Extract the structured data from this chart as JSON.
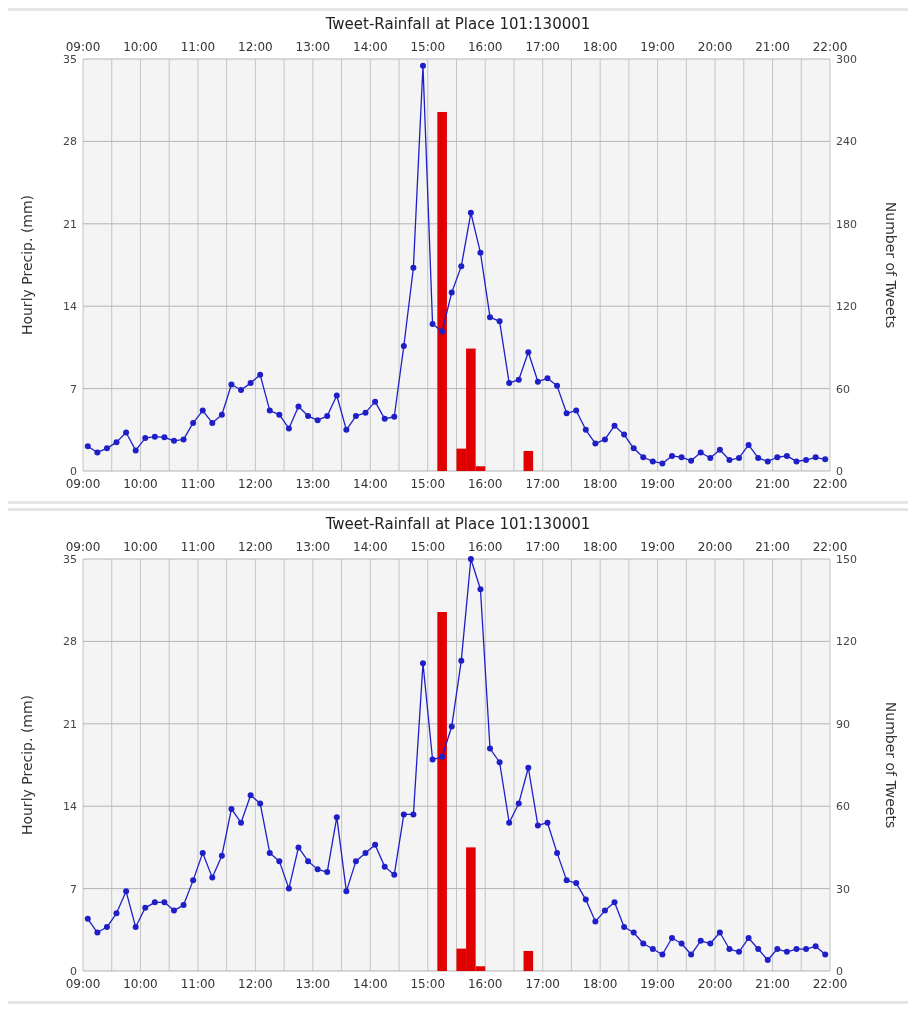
{
  "chart_data": [
    {
      "type": "bar",
      "title": "Tweet-Rainfall at Place 101:130001",
      "ylabel": "Hourly Precip. (mm)",
      "y2label": "Number of Tweets",
      "grid": true,
      "marker": "circle",
      "x": [
        9.0833,
        9.25,
        9.4167,
        9.5833,
        9.75,
        9.9167,
        10.0833,
        10.25,
        10.4167,
        10.5833,
        10.75,
        10.9167,
        11.0833,
        11.25,
        11.4167,
        11.5833,
        11.75,
        11.9167,
        12.0833,
        12.25,
        12.4167,
        12.5833,
        12.75,
        12.9167,
        13.0833,
        13.25,
        13.4167,
        13.5833,
        13.75,
        13.9167,
        14.0833,
        14.25,
        14.4167,
        14.5833,
        14.75,
        14.9167,
        15.0833,
        15.25,
        15.4167,
        15.5833,
        15.75,
        15.9167,
        16.0833,
        16.25,
        16.4167,
        16.5833,
        16.75,
        16.9167,
        17.0833,
        17.25,
        17.4167,
        17.5833,
        17.75,
        17.9167,
        18.0833,
        18.25,
        18.4167,
        18.5833,
        18.75,
        18.9167,
        19.0833,
        19.25,
        19.4167,
        19.5833,
        19.75,
        19.9167,
        20.0833,
        20.25,
        20.4167,
        20.5833,
        20.75,
        20.9167,
        21.0833,
        21.25,
        21.4167,
        21.5833,
        21.75,
        21.9167
      ],
      "xlim": [
        9,
        22
      ],
      "xticks": [
        {
          "value": 9,
          "label": "09:00"
        },
        {
          "value": 9.5,
          "label": null
        },
        {
          "value": 10,
          "label": "10:00"
        },
        {
          "value": 10.5,
          "label": null
        },
        {
          "value": 11,
          "label": "11:00"
        },
        {
          "value": 11.5,
          "label": null
        },
        {
          "value": 12,
          "label": "12:00"
        },
        {
          "value": 12.5,
          "label": null
        },
        {
          "value": 13,
          "label": "13:00"
        },
        {
          "value": 13.5,
          "label": null
        },
        {
          "value": 14,
          "label": "14:00"
        },
        {
          "value": 14.5,
          "label": null
        },
        {
          "value": 15,
          "label": "15:00"
        },
        {
          "value": 15.5,
          "label": null
        },
        {
          "value": 16,
          "label": "16:00"
        },
        {
          "value": 16.5,
          "label": null
        },
        {
          "value": 17,
          "label": "17:00"
        },
        {
          "value": 17.5,
          "label": null
        },
        {
          "value": 18,
          "label": "18:00"
        },
        {
          "value": 18.5,
          "label": null
        },
        {
          "value": 19,
          "label": "19:00"
        },
        {
          "value": 19.5,
          "label": null
        },
        {
          "value": 20,
          "label": "20:00"
        },
        {
          "value": 20.5,
          "label": null
        },
        {
          "value": 21,
          "label": "21:00"
        },
        {
          "value": 21.5,
          "label": null
        },
        {
          "value": 22,
          "label": "22:00"
        }
      ],
      "x2lim": [
        9,
        22
      ],
      "x2ticks": [
        {
          "value": 9,
          "label": "09:00"
        },
        {
          "value": 10,
          "label": "10:00"
        },
        {
          "value": 11,
          "label": "11:00"
        },
        {
          "value": 12,
          "label": "12:00"
        },
        {
          "value": 13,
          "label": "13:00"
        },
        {
          "value": 14,
          "label": "14:00"
        },
        {
          "value": 15,
          "label": "15:00"
        },
        {
          "value": 16,
          "label": "16:00"
        },
        {
          "value": 17,
          "label": "17:00"
        },
        {
          "value": 18,
          "label": "18:00"
        },
        {
          "value": 19,
          "label": "19:00"
        },
        {
          "value": 20,
          "label": "20:00"
        },
        {
          "value": 21,
          "label": "21:00"
        },
        {
          "value": 22,
          "label": "22:00"
        }
      ],
      "ylim": [
        0,
        35
      ],
      "yticks": [
        0,
        7,
        14,
        21,
        28,
        35
      ],
      "y2lim": [
        0,
        300
      ],
      "y2ticks": [
        0,
        60,
        120,
        180,
        240,
        300
      ],
      "series": [
        {
          "type": "bar",
          "axis": "y",
          "color": "#e00000",
          "values": [
            0,
            0,
            0,
            0,
            0,
            0,
            0,
            0,
            0,
            0,
            0,
            0,
            0,
            0,
            0,
            0,
            0,
            0,
            0,
            0,
            0,
            0,
            0,
            0,
            0,
            0,
            0,
            0,
            0,
            0,
            0,
            0,
            0,
            0,
            0,
            0,
            0,
            30.5,
            0,
            1.9,
            10.4,
            0.4,
            0,
            0,
            0,
            0,
            1.7,
            0,
            0,
            0,
            0,
            0,
            0,
            0,
            0,
            0,
            0,
            0,
            0,
            0,
            0,
            0,
            0,
            0,
            0,
            0,
            0,
            0,
            0,
            0,
            0,
            0,
            0,
            0,
            0,
            0,
            0,
            0
          ]
        },
        {
          "type": "line",
          "axis": "y2",
          "color": "#1f1fc8",
          "values": [
            18,
            13.5,
            16.5,
            21,
            28,
            15,
            24,
            25,
            24.5,
            22,
            23,
            35,
            44,
            35,
            41,
            63,
            59,
            64,
            70,
            44,
            41,
            31,
            47,
            40,
            37,
            40,
            55,
            30,
            40,
            42.5,
            50.5,
            38,
            39.5,
            91,
            148,
            295,
            107,
            101.5,
            130,
            149,
            188,
            159,
            112,
            109,
            64,
            66.5,
            86.5,
            65,
            67.5,
            62,
            42,
            44,
            30,
            20,
            23,
            33,
            26.5,
            16.5,
            10,
            7,
            5.5,
            11,
            10,
            7.5,
            13.5,
            9.5,
            15.5,
            8,
            9.5,
            19,
            9.5,
            7,
            10,
            11,
            7,
            8,
            10,
            8.5
          ]
        }
      ]
    },
    {
      "type": "bar",
      "title": "Tweet-Rainfall at Place 101:130001",
      "ylabel": "Hourly Precip. (mm)",
      "y2label": "Number of Tweets",
      "grid": true,
      "marker": "circle",
      "x": [
        9.0833,
        9.25,
        9.4167,
        9.5833,
        9.75,
        9.9167,
        10.0833,
        10.25,
        10.4167,
        10.5833,
        10.75,
        10.9167,
        11.0833,
        11.25,
        11.4167,
        11.5833,
        11.75,
        11.9167,
        12.0833,
        12.25,
        12.4167,
        12.5833,
        12.75,
        12.9167,
        13.0833,
        13.25,
        13.4167,
        13.5833,
        13.75,
        13.9167,
        14.0833,
        14.25,
        14.4167,
        14.5833,
        14.75,
        14.9167,
        15.0833,
        15.25,
        15.4167,
        15.5833,
        15.75,
        15.9167,
        16.0833,
        16.25,
        16.4167,
        16.5833,
        16.75,
        16.9167,
        17.0833,
        17.25,
        17.4167,
        17.5833,
        17.75,
        17.9167,
        18.0833,
        18.25,
        18.4167,
        18.5833,
        18.75,
        18.9167,
        19.0833,
        19.25,
        19.4167,
        19.5833,
        19.75,
        19.9167,
        20.0833,
        20.25,
        20.4167,
        20.5833,
        20.75,
        20.9167,
        21.0833,
        21.25,
        21.4167,
        21.5833,
        21.75,
        21.9167
      ],
      "xlim": [
        9,
        22
      ],
      "xticks": [
        {
          "value": 9,
          "label": "09:00"
        },
        {
          "value": 9.5,
          "label": null
        },
        {
          "value": 10,
          "label": "10:00"
        },
        {
          "value": 10.5,
          "label": null
        },
        {
          "value": 11,
          "label": "11:00"
        },
        {
          "value": 11.5,
          "label": null
        },
        {
          "value": 12,
          "label": "12:00"
        },
        {
          "value": 12.5,
          "label": null
        },
        {
          "value": 13,
          "label": "13:00"
        },
        {
          "value": 13.5,
          "label": null
        },
        {
          "value": 14,
          "label": "14:00"
        },
        {
          "value": 14.5,
          "label": null
        },
        {
          "value": 15,
          "label": "15:00"
        },
        {
          "value": 15.5,
          "label": null
        },
        {
          "value": 16,
          "label": "16:00"
        },
        {
          "value": 16.5,
          "label": null
        },
        {
          "value": 17,
          "label": "17:00"
        },
        {
          "value": 17.5,
          "label": null
        },
        {
          "value": 18,
          "label": "18:00"
        },
        {
          "value": 18.5,
          "label": null
        },
        {
          "value": 19,
          "label": "19:00"
        },
        {
          "value": 19.5,
          "label": null
        },
        {
          "value": 20,
          "label": "20:00"
        },
        {
          "value": 20.5,
          "label": null
        },
        {
          "value": 21,
          "label": "21:00"
        },
        {
          "value": 21.5,
          "label": null
        },
        {
          "value": 22,
          "label": "22:00"
        }
      ],
      "x2lim": [
        9,
        22
      ],
      "x2ticks": [
        {
          "value": 9,
          "label": "09:00"
        },
        {
          "value": 10,
          "label": "10:00"
        },
        {
          "value": 11,
          "label": "11:00"
        },
        {
          "value": 12,
          "label": "12:00"
        },
        {
          "value": 13,
          "label": "13:00"
        },
        {
          "value": 14,
          "label": "14:00"
        },
        {
          "value": 15,
          "label": "15:00"
        },
        {
          "value": 16,
          "label": "16:00"
        },
        {
          "value": 17,
          "label": "17:00"
        },
        {
          "value": 18,
          "label": "18:00"
        },
        {
          "value": 19,
          "label": "19:00"
        },
        {
          "value": 20,
          "label": "20:00"
        },
        {
          "value": 21,
          "label": "21:00"
        },
        {
          "value": 22,
          "label": "22:00"
        }
      ],
      "ylim": [
        0,
        35
      ],
      "yticks": [
        0,
        7,
        14,
        21,
        28,
        35
      ],
      "y2lim": [
        0,
        150
      ],
      "y2ticks": [
        0,
        30,
        60,
        90,
        120,
        150
      ],
      "series": [
        {
          "type": "bar",
          "axis": "y",
          "color": "#e00000",
          "values": [
            0,
            0,
            0,
            0,
            0,
            0,
            0,
            0,
            0,
            0,
            0,
            0,
            0,
            0,
            0,
            0,
            0,
            0,
            0,
            0,
            0,
            0,
            0,
            0,
            0,
            0,
            0,
            0,
            0,
            0,
            0,
            0,
            0,
            0,
            0,
            0,
            0,
            30.5,
            0,
            1.9,
            10.5,
            0.4,
            0,
            0,
            0,
            0,
            1.7,
            0,
            0,
            0,
            0,
            0,
            0,
            0,
            0,
            0,
            0,
            0,
            0,
            0,
            0,
            0,
            0,
            0,
            0,
            0,
            0,
            0,
            0,
            0,
            0,
            0,
            0,
            0,
            0,
            0,
            0,
            0
          ]
        },
        {
          "type": "line",
          "axis": "y2",
          "color": "#1f1fc8",
          "values": [
            19,
            14,
            16,
            21,
            29,
            16,
            23,
            25,
            25,
            22,
            24,
            33,
            43,
            34,
            42,
            59,
            54,
            64,
            61,
            43,
            40,
            30,
            45,
            40,
            37,
            36,
            56,
            29,
            40,
            43,
            46,
            38,
            35,
            57,
            57,
            112,
            77,
            78,
            89,
            113,
            150,
            139,
            81,
            76,
            54,
            61,
            74,
            53,
            54,
            43,
            33,
            32,
            26,
            18,
            22,
            25,
            16,
            14,
            10,
            8,
            6,
            12,
            10,
            6,
            11,
            10,
            14,
            8,
            7,
            12,
            8,
            4,
            8,
            7,
            8,
            8,
            9,
            6
          ]
        }
      ]
    }
  ]
}
